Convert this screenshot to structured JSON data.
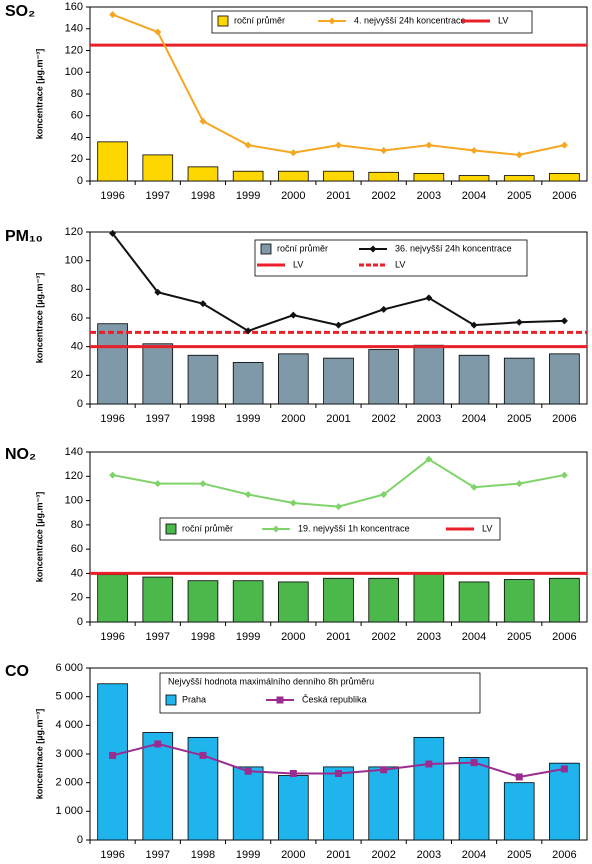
{
  "chart_data": [
    {
      "type": "bar",
      "title": "SO₂",
      "y_label": "koncentrace [µg.m⁻³]",
      "categories": [
        "1996",
        "1997",
        "1998",
        "1999",
        "2000",
        "2001",
        "2002",
        "2003",
        "2004",
        "2005",
        "2006"
      ],
      "series": [
        {
          "name": "roční průměr",
          "type": "bar",
          "color": "#ffd700",
          "values": [
            36,
            24,
            13,
            9,
            9,
            9,
            8,
            7,
            5,
            5,
            7
          ]
        },
        {
          "name": "4. nejvyšší 24h koncentrace",
          "type": "line",
          "marker": "diamond",
          "color": "#f5a623",
          "values": [
            153,
            137,
            55,
            33,
            26,
            33,
            28,
            33,
            28,
            24,
            33
          ]
        }
      ],
      "ref_lines": [
        {
          "name": "LV",
          "value": 125,
          "color": "#e8202a",
          "style": "solid"
        }
      ],
      "ylim": [
        0,
        160
      ],
      "yticks": [
        0,
        20,
        40,
        60,
        80,
        100,
        120,
        140,
        160
      ]
    },
    {
      "type": "bar",
      "title": "PM₁₀",
      "y_label": "koncentrace [µg.m⁻³]",
      "categories": [
        "1996",
        "1997",
        "1998",
        "1999",
        "2000",
        "2001",
        "2002",
        "2003",
        "2004",
        "2005",
        "2006"
      ],
      "series": [
        {
          "name": "roční průměr",
          "type": "bar",
          "color": "#7f99a8",
          "values": [
            56,
            42,
            34,
            29,
            35,
            32,
            38,
            41,
            34,
            32,
            35
          ]
        },
        {
          "name": "36. nejvyšší 24h koncentrace",
          "type": "line",
          "marker": "diamond",
          "color": "#111111",
          "values": [
            119,
            78,
            70,
            51,
            62,
            55,
            66,
            74,
            55,
            57,
            58
          ]
        }
      ],
      "ref_lines": [
        {
          "name": "LV",
          "value": 40,
          "color": "#e8202a",
          "style": "solid"
        },
        {
          "name": "LV",
          "value": 50,
          "color": "#e8202a",
          "style": "dashed"
        }
      ],
      "ylim": [
        0,
        120
      ],
      "yticks": [
        0,
        20,
        40,
        60,
        80,
        100,
        120
      ]
    },
    {
      "type": "bar",
      "title": "NO₂",
      "y_label": "koncentrace [µg.m⁻³]",
      "categories": [
        "1996",
        "1997",
        "1998",
        "1999",
        "2000",
        "2001",
        "2002",
        "2003",
        "2004",
        "2005",
        "2006"
      ],
      "series": [
        {
          "name": "roční průměr",
          "type": "bar",
          "color": "#4cb84c",
          "values": [
            39,
            37,
            34,
            34,
            33,
            36,
            36,
            40,
            33,
            35,
            36
          ]
        },
        {
          "name": "19. nejvyšší 1h koncentrace",
          "type": "line",
          "marker": "diamond",
          "color": "#7fd36a",
          "values": [
            121,
            114,
            114,
            105,
            98,
            95,
            105,
            134,
            111,
            114,
            121
          ]
        }
      ],
      "ref_lines": [
        {
          "name": "LV",
          "value": 40,
          "color": "#e8202a",
          "style": "solid"
        }
      ],
      "ylim": [
        0,
        140
      ],
      "yticks": [
        0,
        20,
        40,
        60,
        80,
        100,
        120,
        140
      ]
    },
    {
      "type": "bar",
      "title": "CO",
      "y_label": "koncentrace [µg.m⁻³]",
      "legend_title": "Nejvyšší hodnota maximálního denního 8h průměru",
      "categories": [
        "1996",
        "1997",
        "1998",
        "1999",
        "2000",
        "2001",
        "2002",
        "2003",
        "2004",
        "2005",
        "2006"
      ],
      "series": [
        {
          "name": "Praha",
          "type": "bar",
          "color": "#1fb4ec",
          "values": [
            5450,
            3750,
            3580,
            2550,
            2250,
            2550,
            2550,
            3580,
            2880,
            2000,
            2680
          ]
        },
        {
          "name": "Česká republika",
          "type": "line",
          "marker": "square",
          "color": "#9b2c8f",
          "values": [
            2950,
            3350,
            2950,
            2400,
            2320,
            2320,
            2450,
            2650,
            2700,
            2200,
            2480
          ]
        }
      ],
      "ref_lines": [],
      "ylim": [
        0,
        6000
      ],
      "yticks": [
        0,
        {
          "value": 1000,
          "label": "1 000"
        },
        {
          "value": 2000,
          "label": "2 000"
        },
        {
          "value": 3000,
          "label": "3 000"
        },
        {
          "value": 4000,
          "label": "4 000"
        },
        {
          "value": 5000,
          "label": "5 000"
        },
        {
          "value": 6000,
          "label": "6 000"
        }
      ]
    }
  ]
}
